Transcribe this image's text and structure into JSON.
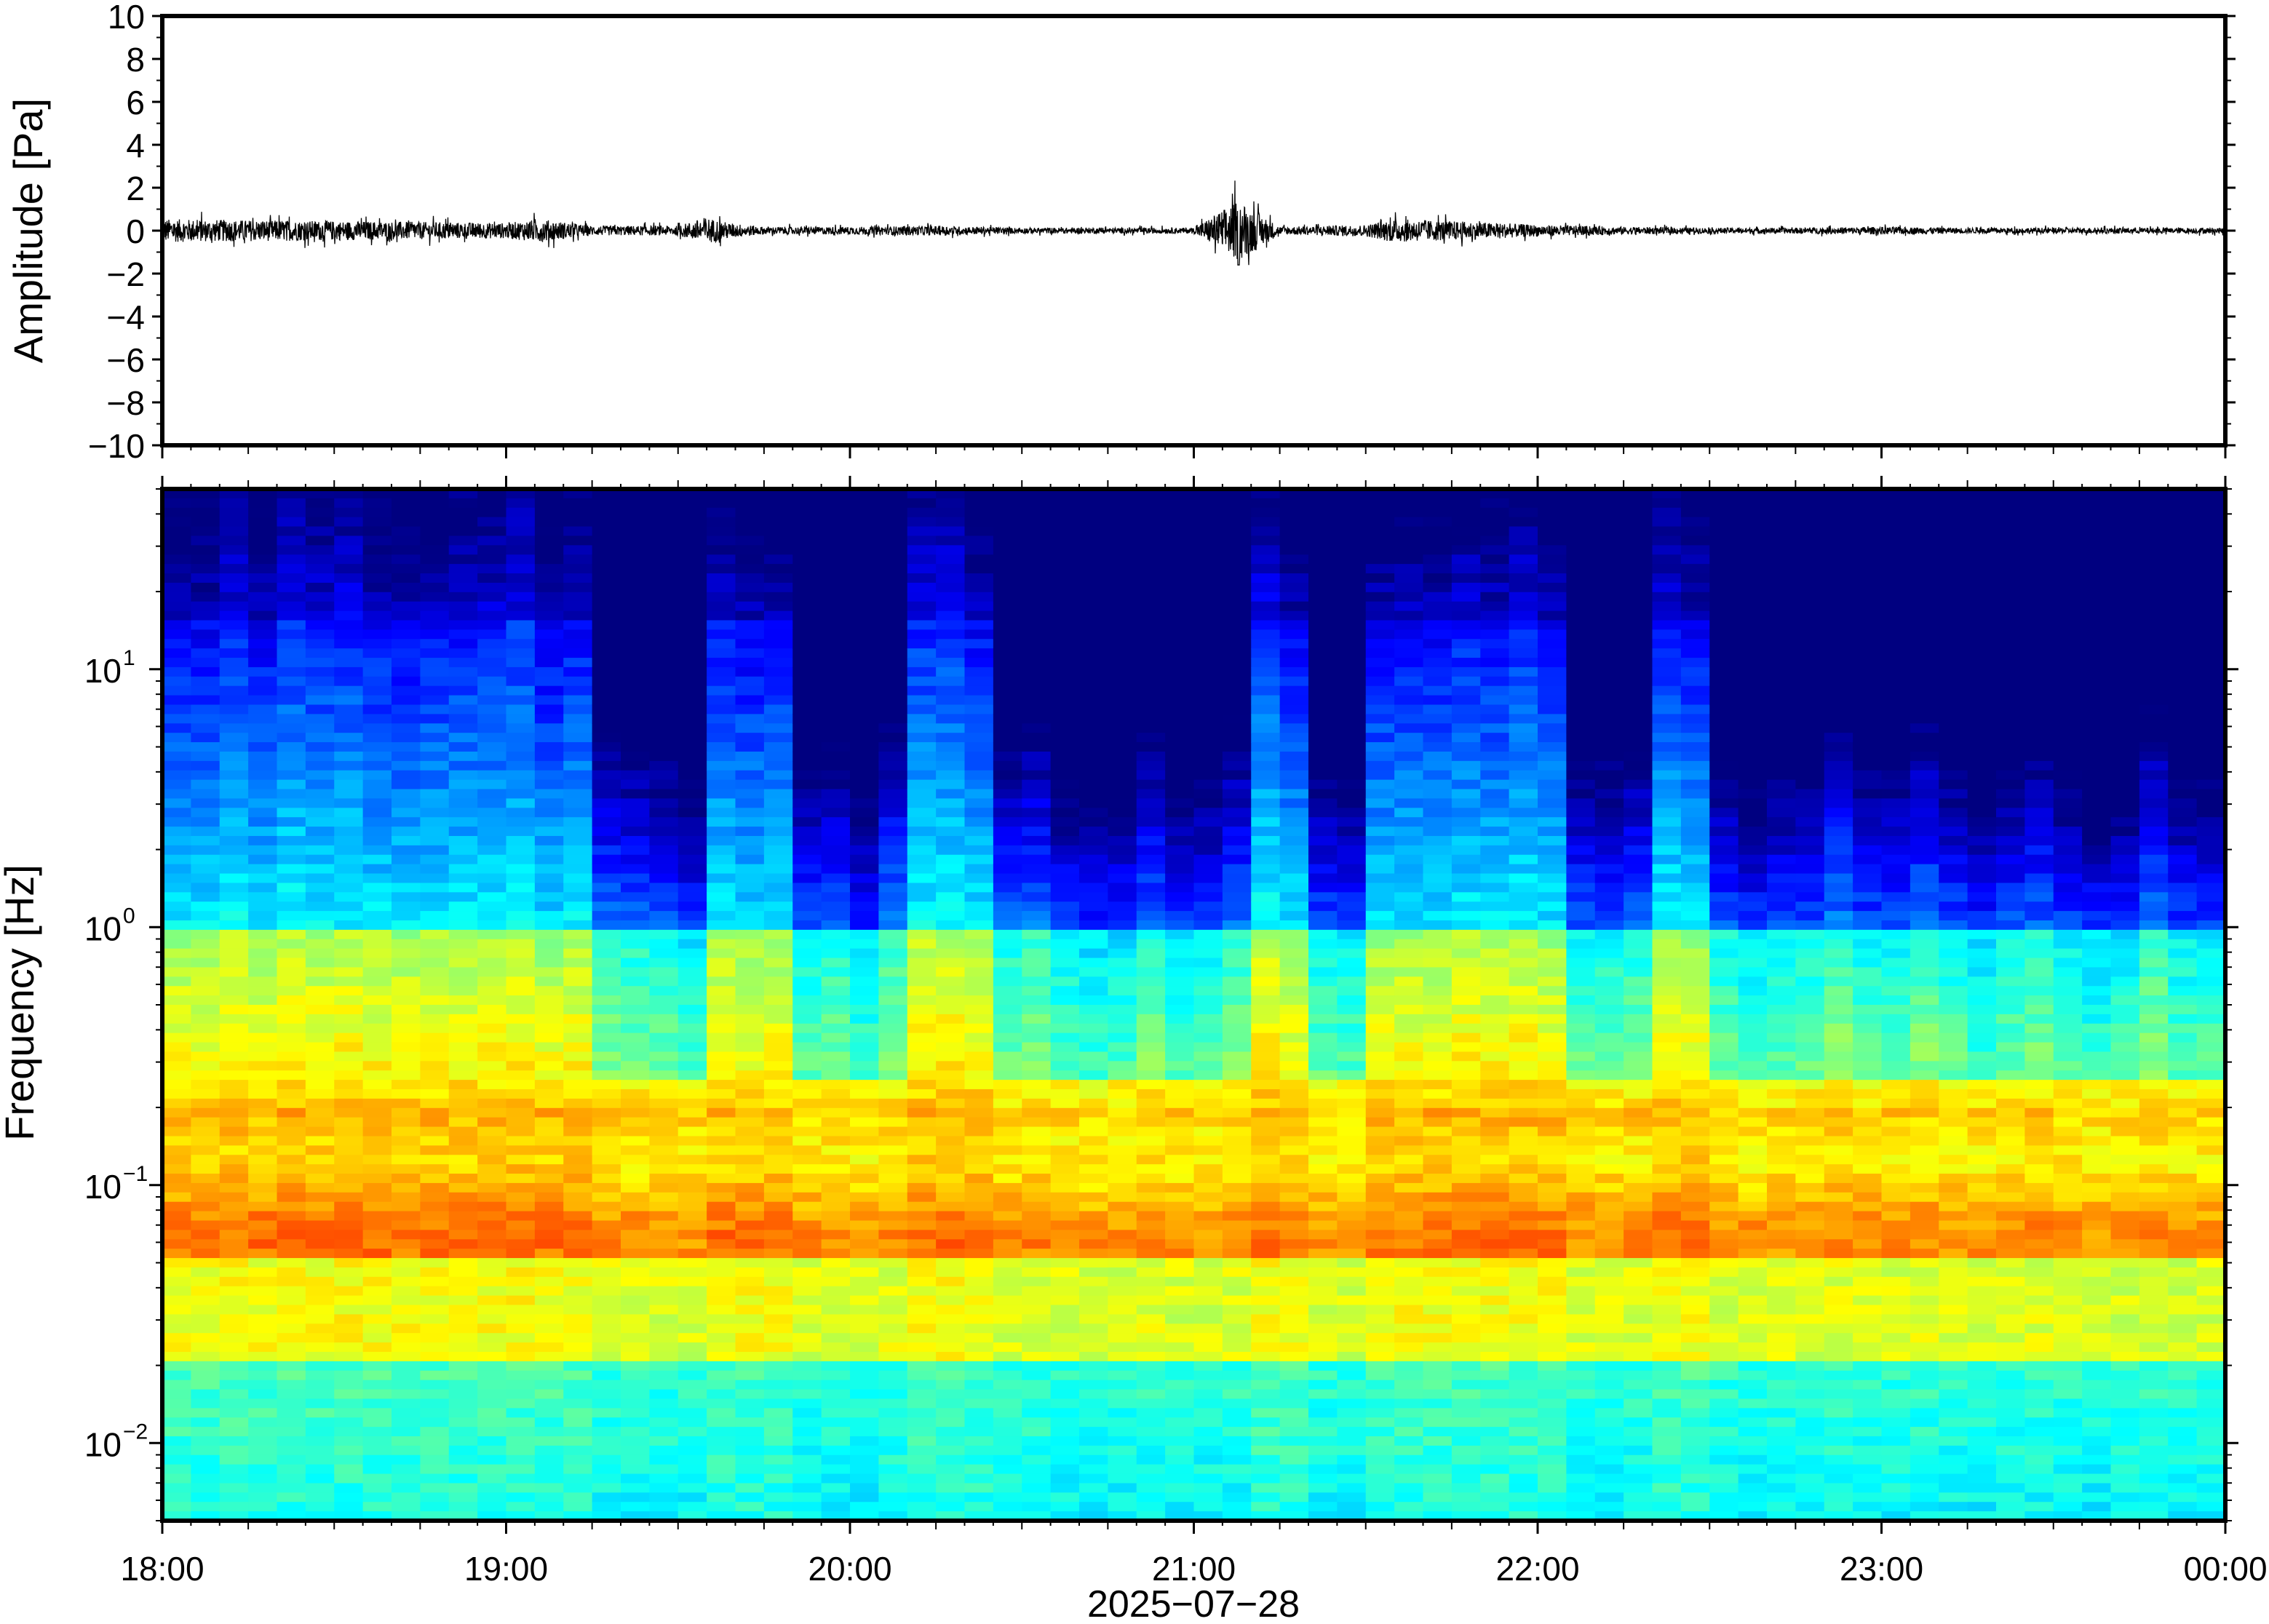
{
  "chart_data": [
    {
      "type": "line",
      "ylabel": "Amplitude [Pa]",
      "ylim": [
        -10,
        10
      ],
      "yticks": [
        "10",
        "8",
        "6",
        "4",
        "2",
        "0",
        "−2",
        "−4",
        "−6",
        "−8",
        "−10"
      ],
      "ytick_values": [
        10,
        8,
        6,
        4,
        2,
        0,
        -2,
        -4,
        -6,
        -8,
        -10
      ],
      "xlim": [
        "18:00",
        "00:00"
      ],
      "grid": false,
      "series": [
        {
          "x_hours": [
            18.0,
            18.25,
            18.5,
            18.75,
            19.0,
            19.1,
            19.25,
            19.5,
            19.58,
            19.65,
            19.75,
            20.0,
            20.25,
            20.5,
            20.75,
            21.0,
            21.13,
            21.25,
            21.5,
            21.58,
            21.75,
            22.0,
            22.25,
            22.5,
            22.75,
            23.0,
            23.25,
            23.5,
            23.75,
            24.0
          ],
          "envelope_pa": [
            0.6,
            0.55,
            0.5,
            0.45,
            0.4,
            0.6,
            0.25,
            0.25,
            0.7,
            0.4,
            0.2,
            0.2,
            0.25,
            0.15,
            0.15,
            0.15,
            1.6,
            0.2,
            0.3,
            0.6,
            0.5,
            0.3,
            0.2,
            0.15,
            0.15,
            0.2,
            0.15,
            0.15,
            0.15,
            0.15
          ]
        }
      ]
    },
    {
      "type": "heatmap",
      "ylabel": "Frequency [Hz]",
      "yscale": "log",
      "ylim": [
        0.005,
        50
      ],
      "yticks": [
        {
          "value": 10,
          "base": "10",
          "exp": "1"
        },
        {
          "value": 1,
          "base": "10",
          "exp": "0"
        },
        {
          "value": 0.1,
          "base": "10",
          "exp": "−1"
        },
        {
          "value": 0.01,
          "base": "10",
          "exp": "−2"
        }
      ],
      "xlabel": "2025−07−28",
      "xticks": [
        "18:00",
        "19:00",
        "20:00",
        "21:00",
        "22:00",
        "23:00",
        "00:00"
      ],
      "xtick_hours": [
        18,
        19,
        20,
        21,
        22,
        23,
        24
      ],
      "colormap": "jet",
      "description_quiet_low_hf_intervals": [
        [
          19.25,
          19.55
        ],
        [
          19.8,
          20.2
        ],
        [
          20.4,
          21.2
        ],
        [
          21.3,
          21.5
        ],
        [
          22.05,
          22.3
        ],
        [
          22.5,
          24.0
        ]
      ],
      "colors": {
        "jet_low": "#00007f",
        "jet_high": "#7f0000"
      }
    }
  ]
}
